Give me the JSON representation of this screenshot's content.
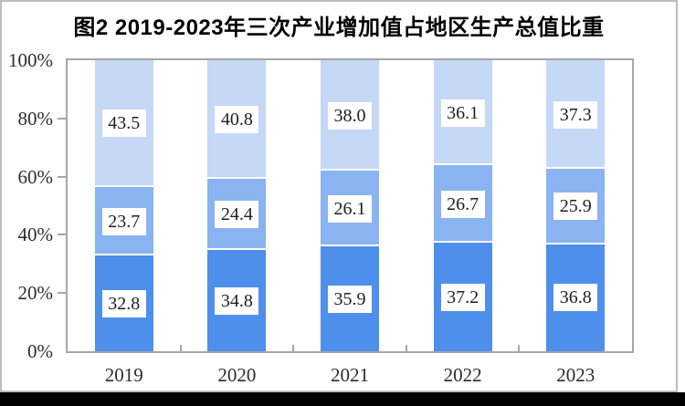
{
  "panel": {
    "background": "#ffffff",
    "border_color": "#bdbdbd"
  },
  "bottom_strip": {
    "color": "#000000"
  },
  "chart": {
    "title": "图2 2019-2023年三次产业增加值占地区生产总值比重",
    "frame_color": "#a6a6a6",
    "axis_text_color": "#2b2b33",
    "label_box_background": "#ffffff",
    "label_box_text_color": "#1f1f1f"
  },
  "chart_data": {
    "type": "bar",
    "stacked": true,
    "percent_stacked": true,
    "unit": "%",
    "title": "图2 2019-2023年三次产业增加值占地区生产总值比重",
    "categories": [
      "2019",
      "2020",
      "2021",
      "2022",
      "2023"
    ],
    "series": [
      {
        "name": "bottom-segment",
        "color": "#4E8FEC",
        "values": [
          32.8,
          34.8,
          35.9,
          37.2,
          36.8
        ],
        "labels": [
          "32.8",
          "34.8",
          "35.9",
          "37.2",
          "36.8"
        ]
      },
      {
        "name": "middle-segment",
        "color": "#8AB3F1",
        "values": [
          23.7,
          24.4,
          26.1,
          26.7,
          25.9
        ],
        "labels": [
          "23.7",
          "24.4",
          "26.1",
          "26.7",
          "25.9"
        ]
      },
      {
        "name": "top-segment",
        "color": "#C5D8F6",
        "values": [
          43.5,
          40.8,
          38.0,
          36.1,
          37.3
        ],
        "labels": [
          "43.5",
          "40.8",
          "38.0",
          "36.1",
          "37.3"
        ]
      }
    ],
    "xlabel": "",
    "ylabel": "",
    "ylim": [
      0,
      100
    ],
    "yticks": [
      0,
      20,
      40,
      60,
      80,
      100
    ],
    "ytick_labels": [
      "0%",
      "20%",
      "40%",
      "60%",
      "80%",
      "100%"
    ],
    "legend": "none",
    "grid": false
  }
}
